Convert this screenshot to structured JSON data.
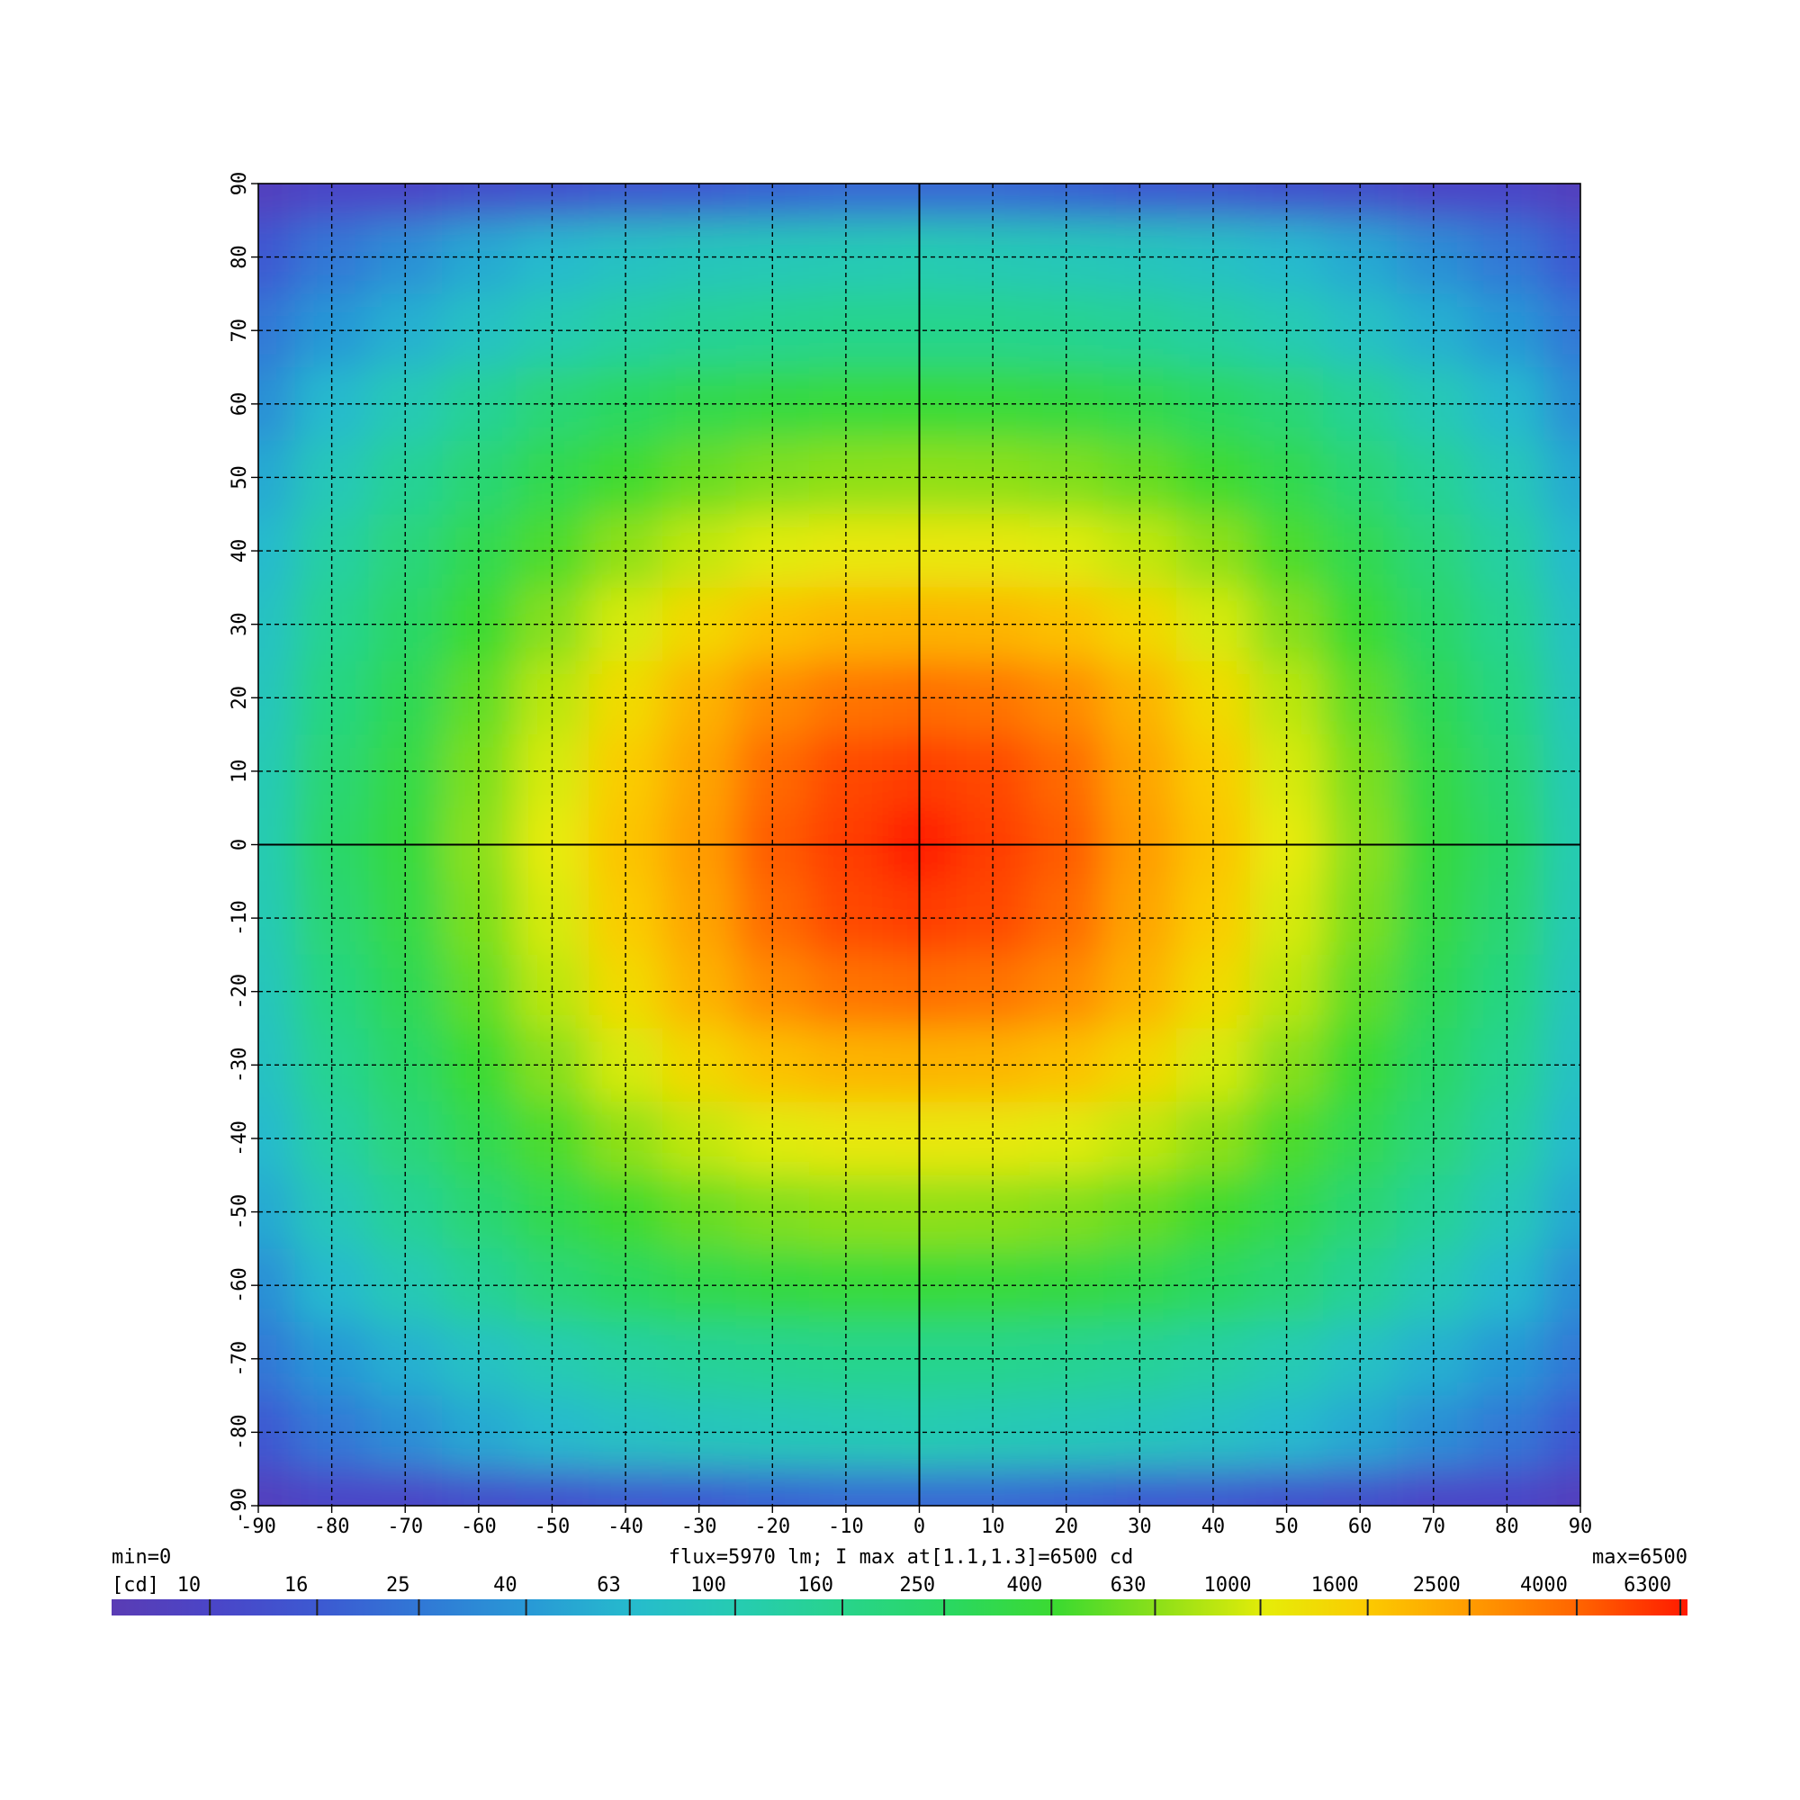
{
  "chart_data": {
    "type": "heatmap",
    "title": "flux=5970 lm; I max at[1.1,1.3]=6500 cd",
    "min_label": "min=0",
    "max_label": "max=6500",
    "colorbar_unit": "[cd]",
    "x": [
      -90,
      -80,
      -70,
      -60,
      -50,
      -40,
      -30,
      -20,
      -10,
      0,
      10,
      20,
      30,
      40,
      50,
      60,
      70,
      80,
      90
    ],
    "y": [
      90,
      80,
      70,
      60,
      50,
      40,
      30,
      20,
      10,
      0,
      -10,
      -20,
      -30,
      -40,
      -50,
      -60,
      -70,
      -80,
      -90
    ],
    "z": [
      [
        8,
        10,
        10,
        12,
        13,
        15,
        16,
        18,
        20,
        20,
        20,
        18,
        16,
        15,
        13,
        12,
        10,
        10,
        8
      ],
      [
        16,
        25,
        35,
        50,
        63,
        75,
        85,
        90,
        95,
        100,
        95,
        90,
        85,
        75,
        63,
        50,
        35,
        25,
        16
      ],
      [
        25,
        40,
        55,
        75,
        100,
        120,
        140,
        150,
        160,
        160,
        160,
        150,
        140,
        120,
        100,
        75,
        55,
        40,
        25
      ],
      [
        35,
        63,
        95,
        140,
        200,
        260,
        310,
        350,
        370,
        380,
        370,
        350,
        310,
        260,
        200,
        140,
        95,
        63,
        35
      ],
      [
        50,
        90,
        140,
        210,
        310,
        420,
        520,
        600,
        640,
        650,
        640,
        600,
        520,
        420,
        310,
        210,
        140,
        90,
        50
      ],
      [
        63,
        120,
        190,
        300,
        450,
        650,
        850,
        1000,
        1080,
        1100,
        1080,
        1000,
        850,
        650,
        450,
        300,
        190,
        120,
        63
      ],
      [
        75,
        150,
        240,
        400,
        620,
        950,
        1350,
        1750,
        1950,
        2000,
        1950,
        1750,
        1350,
        950,
        620,
        400,
        240,
        150,
        75
      ],
      [
        85,
        180,
        290,
        500,
        820,
        1300,
        2000,
        2900,
        3500,
        3700,
        3500,
        2900,
        2000,
        1300,
        820,
        500,
        290,
        180,
        85
      ],
      [
        95,
        210,
        330,
        580,
        950,
        1550,
        2300,
        3800,
        4800,
        5200,
        4800,
        3800,
        2300,
        1550,
        950,
        580,
        330,
        210,
        95
      ],
      [
        100,
        230,
        350,
        630,
        1050,
        1700,
        2500,
        4300,
        5200,
        6500,
        5200,
        4300,
        2500,
        1700,
        1050,
        630,
        350,
        230,
        100
      ],
      [
        95,
        210,
        330,
        580,
        950,
        1550,
        2300,
        3800,
        4800,
        5200,
        4800,
        3800,
        2300,
        1550,
        950,
        580,
        330,
        210,
        95
      ],
      [
        85,
        180,
        290,
        500,
        820,
        1300,
        2000,
        2900,
        3500,
        3700,
        3500,
        2900,
        2000,
        1300,
        820,
        500,
        290,
        180,
        85
      ],
      [
        75,
        150,
        240,
        400,
        620,
        950,
        1350,
        1750,
        1950,
        2000,
        1950,
        1750,
        1350,
        950,
        620,
        400,
        240,
        150,
        75
      ],
      [
        63,
        120,
        190,
        300,
        450,
        650,
        850,
        1000,
        1080,
        1100,
        1080,
        1000,
        850,
        650,
        450,
        300,
        190,
        120,
        63
      ],
      [
        50,
        90,
        140,
        210,
        310,
        420,
        520,
        600,
        640,
        650,
        640,
        600,
        520,
        420,
        310,
        210,
        140,
        90,
        50
      ],
      [
        35,
        63,
        95,
        140,
        200,
        260,
        310,
        350,
        370,
        380,
        370,
        350,
        310,
        260,
        200,
        140,
        95,
        63,
        35
      ],
      [
        25,
        40,
        55,
        75,
        100,
        120,
        140,
        150,
        160,
        160,
        160,
        150,
        140,
        120,
        100,
        75,
        55,
        40,
        25
      ],
      [
        16,
        25,
        35,
        50,
        63,
        75,
        85,
        90,
        95,
        100,
        95,
        90,
        85,
        75,
        63,
        50,
        35,
        25,
        16
      ],
      [
        8,
        10,
        10,
        12,
        13,
        15,
        16,
        18,
        20,
        20,
        20,
        18,
        16,
        15,
        13,
        12,
        10,
        10,
        8
      ]
    ],
    "xlim": [
      -90,
      90
    ],
    "ylim": [
      -90,
      90
    ],
    "xticks": [
      -90,
      -80,
      -70,
      -60,
      -50,
      -40,
      -30,
      -20,
      -10,
      0,
      10,
      20,
      30,
      40,
      50,
      60,
      70,
      80,
      90
    ],
    "yticks": [
      -90,
      -80,
      -70,
      -60,
      -50,
      -40,
      -30,
      -20,
      -10,
      0,
      10,
      20,
      30,
      40,
      50,
      60,
      70,
      80,
      90
    ],
    "grid": true,
    "color_scale": "log",
    "clim": [
      6.5,
      6500
    ],
    "colors": [
      "#5a3cb4",
      "#4a46c8",
      "#3c5ad2",
      "#307ad6",
      "#289ad6",
      "#26bccc",
      "#26ccb0",
      "#28d48a",
      "#2ad860",
      "#3cda30",
      "#90e018",
      "#e6ec08",
      "#fcc800",
      "#ff9800",
      "#ff6200",
      "#ff1a00"
    ],
    "colorbar_ticks": [
      10,
      16,
      25,
      40,
      63,
      100,
      160,
      250,
      400,
      630,
      1000,
      1600,
      2500,
      4000,
      6300
    ]
  }
}
